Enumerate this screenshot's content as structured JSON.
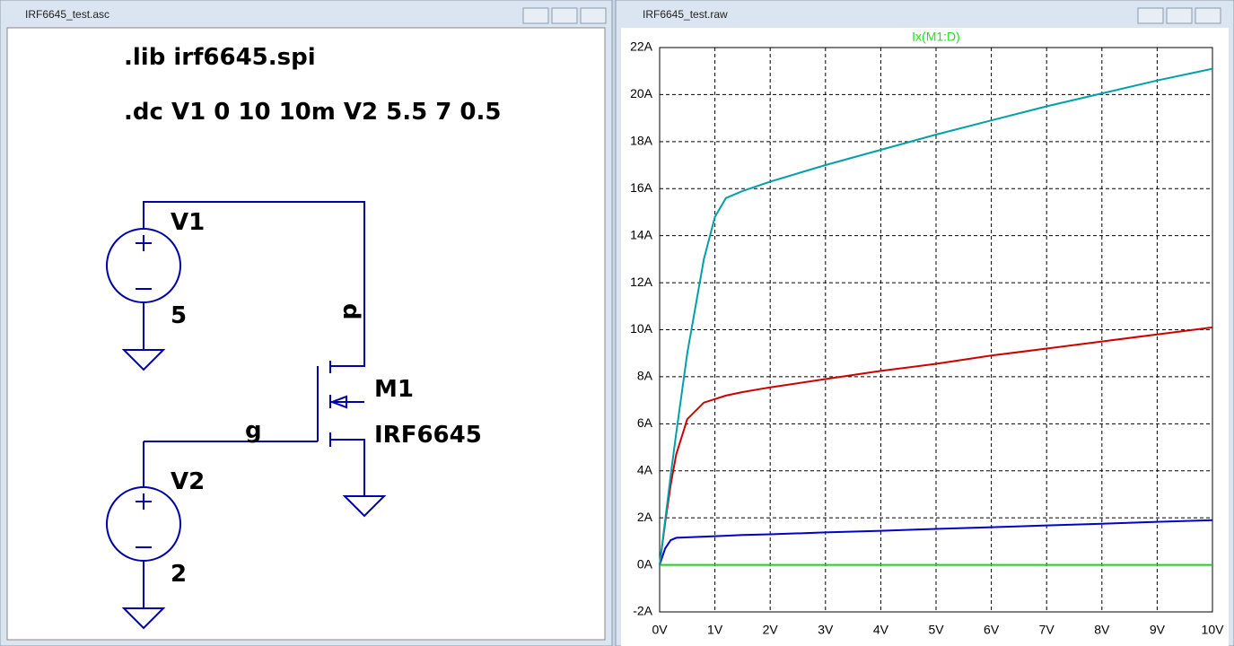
{
  "windows": [
    {
      "title": "IRF6645_test.asc"
    },
    {
      "title": "IRF6645_test.raw"
    }
  ],
  "schematic": {
    "directives": [
      ".lib irf6645.spi",
      ".dc V1 0 10 10m V2 5.5 7 0.5"
    ],
    "v1_name": "V1",
    "v1_value": "5",
    "v2_name": "V2",
    "v2_value": "2",
    "drain_net": "d",
    "gate_net": "g",
    "mosfet_name": "M1",
    "mosfet_model": "IRF6645"
  },
  "chart_data": {
    "type": "line",
    "title": "Ix(M1:D)",
    "title_color": "#22dd22",
    "x": [
      0,
      0.1,
      0.2,
      0.3,
      0.5,
      0.8,
      1,
      1.2,
      1.5,
      2,
      3,
      4,
      5,
      6,
      7,
      8,
      9,
      10
    ],
    "series": [
      {
        "color": "#22cc22",
        "values": [
          0,
          0,
          0,
          0,
          0,
          0,
          0,
          0,
          0,
          0,
          0,
          0,
          0,
          0,
          0,
          0,
          0,
          0
        ]
      },
      {
        "color": "#0000cc",
        "values": [
          0,
          0.7,
          1.05,
          1.15,
          1.17,
          1.2,
          1.22,
          1.24,
          1.27,
          1.3,
          1.38,
          1.45,
          1.53,
          1.6,
          1.68,
          1.75,
          1.83,
          1.9
        ]
      },
      {
        "color": "#cc0000",
        "values": [
          0,
          1.8,
          3.4,
          4.7,
          6.2,
          6.9,
          7.05,
          7.2,
          7.35,
          7.55,
          7.9,
          8.25,
          8.55,
          8.9,
          9.2,
          9.5,
          9.8,
          10.1
        ]
      },
      {
        "color": "#00a0a8",
        "values": [
          0,
          1.9,
          3.8,
          5.6,
          9,
          13,
          14.8,
          15.6,
          15.9,
          16.3,
          17,
          17.65,
          18.3,
          18.9,
          19.5,
          20.05,
          20.6,
          21.1
        ]
      }
    ],
    "xlim": [
      0,
      10
    ],
    "ylim": [
      -2,
      22
    ],
    "grid": true,
    "xticks": [
      {
        "value": 0,
        "label": "0V"
      },
      {
        "value": 1,
        "label": "1V"
      },
      {
        "value": 2,
        "label": "2V"
      },
      {
        "value": 3,
        "label": "3V"
      },
      {
        "value": 4,
        "label": "4V"
      },
      {
        "value": 5,
        "label": "5V"
      },
      {
        "value": 6,
        "label": "6V"
      },
      {
        "value": 7,
        "label": "7V"
      },
      {
        "value": 8,
        "label": "8V"
      },
      {
        "value": 9,
        "label": "9V"
      },
      {
        "value": 10,
        "label": "10V"
      }
    ],
    "yticks": [
      {
        "value": -2,
        "label": "-2A"
      },
      {
        "value": 0,
        "label": "0A"
      },
      {
        "value": 2,
        "label": "2A"
      },
      {
        "value": 4,
        "label": "4A"
      },
      {
        "value": 6,
        "label": "6A"
      },
      {
        "value": 8,
        "label": "8A"
      },
      {
        "value": 10,
        "label": "10A"
      },
      {
        "value": 12,
        "label": "12A"
      },
      {
        "value": 14,
        "label": "14A"
      },
      {
        "value": 16,
        "label": "16A"
      },
      {
        "value": 18,
        "label": "18A"
      },
      {
        "value": 20,
        "label": "20A"
      },
      {
        "value": 22,
        "label": "22A"
      }
    ]
  }
}
